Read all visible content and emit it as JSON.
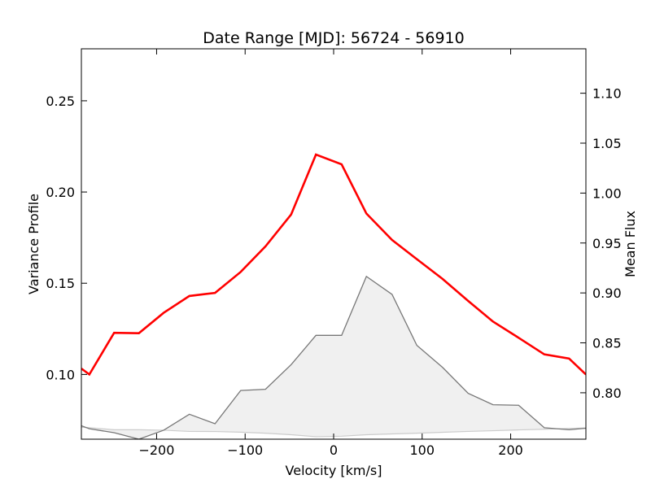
{
  "chart_data": {
    "type": "line",
    "title": "Date Range [MJD]: 56724 - 56910",
    "xlabel": "Velocity [km/s]",
    "ylabel_left": "Variance Profile",
    "ylabel_right": "Mean Flux",
    "xlim": [
      -285,
      285
    ],
    "ylim_left": [
      0.0645,
      0.2785
    ],
    "ylim_right": [
      0.7535,
      1.1445
    ],
    "x_ticks": [
      -200,
      -100,
      0,
      100,
      200
    ],
    "x_tick_labels": [
      "−200",
      "−100",
      "0",
      "100",
      "200"
    ],
    "y_left_ticks": [
      0.1,
      0.15,
      0.2,
      0.25
    ],
    "y_left_tick_labels": [
      "0.10",
      "0.15",
      "0.20",
      "0.25"
    ],
    "y_right_ticks": [
      0.8,
      0.85,
      0.9,
      0.95,
      1.0,
      1.05,
      1.1
    ],
    "y_right_tick_labels": [
      "0.80",
      "0.85",
      "0.90",
      "0.95",
      "1.00",
      "1.05",
      "1.10"
    ],
    "grid": false,
    "series": [
      {
        "axis": "left",
        "color": "#ff0000",
        "x": [
          -285,
          -276,
          -248,
          -220,
          -192,
          -163,
          -134,
          -105,
          -77,
          -48,
          -20,
          9,
          37,
          66,
          94,
          123,
          152,
          180,
          209,
          238,
          266,
          285
        ],
        "y": [
          0.1032,
          0.1,
          0.1228,
          0.1226,
          0.1338,
          0.143,
          0.1447,
          0.1562,
          0.1702,
          0.1877,
          0.2205,
          0.2152,
          0.1882,
          0.1737,
          0.1632,
          0.1524,
          0.1403,
          0.129,
          0.1201,
          0.111,
          0.1087,
          0.1
        ]
      },
      {
        "axis": "right",
        "color": "#777777",
        "fill": "#f0f0f0",
        "x": [
          -285,
          -276,
          -248,
          -220,
          -192,
          -163,
          -134,
          -105,
          -77,
          -48,
          -20,
          9,
          37,
          66,
          94,
          123,
          152,
          180,
          209,
          238,
          266,
          285
        ],
        "y": [
          0.767,
          0.764,
          0.76,
          0.7535,
          0.7625,
          0.7785,
          0.769,
          0.8023,
          0.8035,
          0.8282,
          0.8575,
          0.8575,
          0.9165,
          0.8985,
          0.8475,
          0.8255,
          0.7995,
          0.788,
          0.7875,
          0.765,
          0.763,
          0.7645
        ]
      },
      {
        "axis": "right",
        "color": "#cccccc",
        "x": [
          -285,
          -276,
          -248,
          -220,
          -192,
          -163,
          -134,
          -105,
          -77,
          -48,
          -20,
          9,
          37,
          66,
          94,
          123,
          152,
          180,
          209,
          238,
          266,
          285
        ],
        "y": [
          0.7655,
          0.765,
          0.763,
          0.763,
          0.7625,
          0.7613,
          0.7612,
          0.7605,
          0.7595,
          0.758,
          0.756,
          0.7565,
          0.758,
          0.7588,
          0.7595,
          0.7604,
          0.7613,
          0.762,
          0.7628,
          0.7635,
          0.7643,
          0.7648
        ]
      }
    ]
  }
}
